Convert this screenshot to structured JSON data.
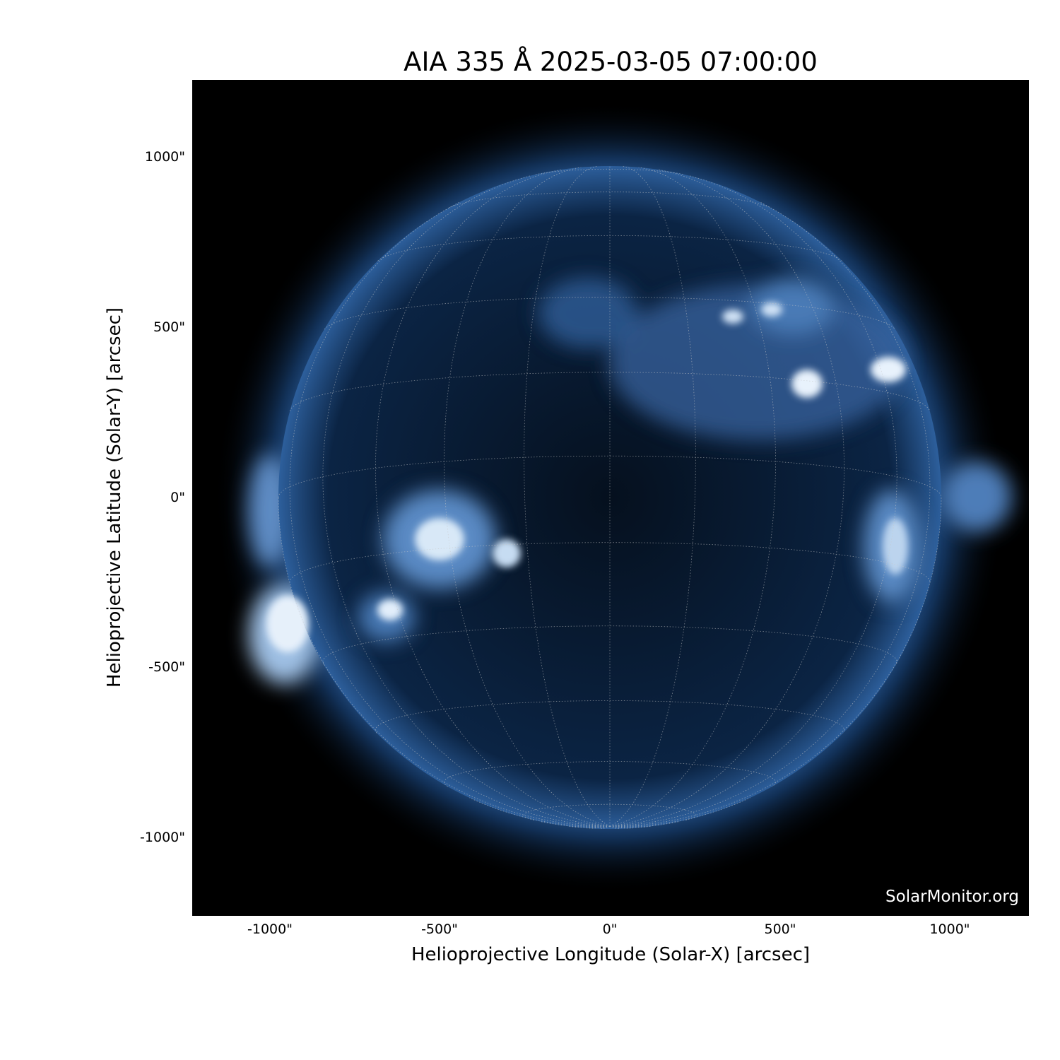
{
  "title": "AIA 335 Å 2025-03-05 07:00:00",
  "xlabel": "Helioprojective Longitude (Solar-X) [arcsec]",
  "ylabel": "Helioprojective Latitude (Solar-Y) [arcsec]",
  "x_ticks": [
    "-1000\"",
    "-500\"",
    "0\"",
    "500\"",
    "1000\""
  ],
  "y_ticks": [
    "1000\"",
    "500\"",
    "0\"",
    "-500\"",
    "-1000\""
  ],
  "watermark": "SolarMonitor.org",
  "colors": {
    "background": "#000000",
    "sun": "#1a4a80",
    "highlight": "#cfe2f5"
  }
}
